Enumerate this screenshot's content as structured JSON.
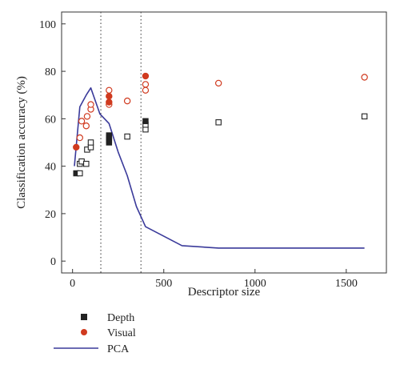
{
  "chart_data": {
    "type": "scatter",
    "xlabel": "Descriptor size",
    "ylabel": "Classification accuracy (%)",
    "xlim": [
      -60,
      1720
    ],
    "ylim": [
      -5,
      105
    ],
    "x_ticks": [
      0,
      500,
      1000,
      1500
    ],
    "y_ticks": [
      0,
      20,
      40,
      60,
      80,
      100
    ],
    "grid": false,
    "legend_placement": "below-left",
    "vertical_reference_lines": [
      155,
      375
    ],
    "colors": {
      "depth": "#222222",
      "visual": "#d03a1f",
      "pca": "#3a3a9a"
    },
    "series": [
      {
        "name": "Depth",
        "marker": "square",
        "points": [
          {
            "x": 20,
            "y": 37,
            "filled": true
          },
          {
            "x": 40,
            "y": 37,
            "filled": false
          },
          {
            "x": 40,
            "y": 41,
            "filled": false
          },
          {
            "x": 50,
            "y": 42,
            "filled": false
          },
          {
            "x": 75,
            "y": 41,
            "filled": false
          },
          {
            "x": 80,
            "y": 47,
            "filled": false
          },
          {
            "x": 100,
            "y": 48,
            "filled": false
          },
          {
            "x": 100,
            "y": 50,
            "filled": false
          },
          {
            "x": 200,
            "y": 50,
            "filled": true
          },
          {
            "x": 200,
            "y": 51,
            "filled": true
          },
          {
            "x": 200,
            "y": 52,
            "filled": true
          },
          {
            "x": 200,
            "y": 53,
            "filled": true
          },
          {
            "x": 300,
            "y": 52.5,
            "filled": false
          },
          {
            "x": 400,
            "y": 55.5,
            "filled": false
          },
          {
            "x": 400,
            "y": 57.5,
            "filled": false
          },
          {
            "x": 400,
            "y": 59,
            "filled": true
          },
          {
            "x": 800,
            "y": 58.5,
            "filled": false
          },
          {
            "x": 1600,
            "y": 61,
            "filled": false
          }
        ]
      },
      {
        "name": "Visual",
        "marker": "circle",
        "points": [
          {
            "x": 20,
            "y": 48,
            "filled": true
          },
          {
            "x": 40,
            "y": 52,
            "filled": false
          },
          {
            "x": 50,
            "y": 59,
            "filled": false
          },
          {
            "x": 75,
            "y": 57,
            "filled": false
          },
          {
            "x": 80,
            "y": 61,
            "filled": false
          },
          {
            "x": 100,
            "y": 64,
            "filled": false
          },
          {
            "x": 100,
            "y": 66,
            "filled": false
          },
          {
            "x": 200,
            "y": 66,
            "filled": false
          },
          {
            "x": 200,
            "y": 67,
            "filled": true
          },
          {
            "x": 200,
            "y": 69.5,
            "filled": true
          },
          {
            "x": 200,
            "y": 72,
            "filled": false
          },
          {
            "x": 300,
            "y": 67.5,
            "filled": false
          },
          {
            "x": 400,
            "y": 72,
            "filled": false
          },
          {
            "x": 400,
            "y": 74.5,
            "filled": false
          },
          {
            "x": 400,
            "y": 78,
            "filled": true
          },
          {
            "x": 800,
            "y": 75,
            "filled": false
          },
          {
            "x": 1600,
            "y": 77.5,
            "filled": false
          }
        ]
      },
      {
        "name": "PCA",
        "marker": "line",
        "points": [
          {
            "x": 10,
            "y": 40
          },
          {
            "x": 40,
            "y": 65
          },
          {
            "x": 75,
            "y": 70
          },
          {
            "x": 100,
            "y": 73
          },
          {
            "x": 150,
            "y": 62
          },
          {
            "x": 200,
            "y": 58
          },
          {
            "x": 250,
            "y": 46
          },
          {
            "x": 300,
            "y": 36
          },
          {
            "x": 350,
            "y": 23
          },
          {
            "x": 400,
            "y": 14.5
          },
          {
            "x": 600,
            "y": 6.5
          },
          {
            "x": 800,
            "y": 5.5
          },
          {
            "x": 1600,
            "y": 5.5
          }
        ]
      }
    ]
  }
}
